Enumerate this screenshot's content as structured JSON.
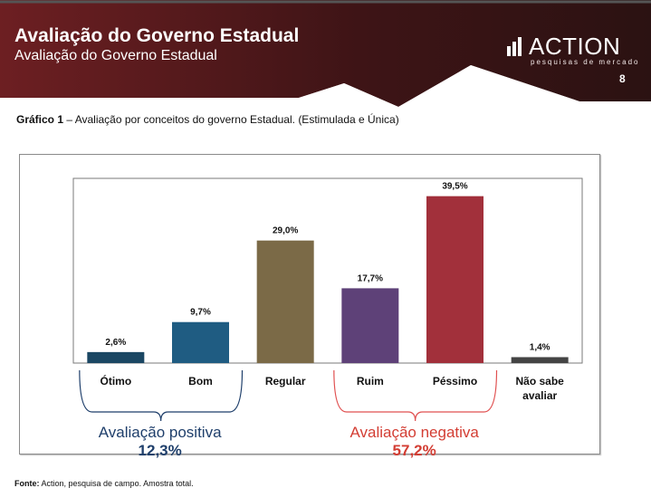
{
  "header": {
    "title": "Avaliação do Governo Estadual",
    "subtitle": "Avaliação do Governo Estadual",
    "logo_text": "ACTION",
    "logo_tagline": "pesquisas de mercado",
    "page_number": "8"
  },
  "caption": {
    "prefix": "Gráfico 1",
    "text": " – Avaliação por conceitos do governo Estadual. (Estimulada e Única)"
  },
  "chart_data": {
    "type": "bar",
    "title": "Avaliação por conceitos do governo Estadual",
    "categories": [
      "Ótimo",
      "Bom",
      "Regular",
      "Ruim",
      "Péssimo",
      "Não sabe avaliar"
    ],
    "category_lines": [
      [
        "Ótimo"
      ],
      [
        "Bom"
      ],
      [
        "Regular"
      ],
      [
        "Ruim"
      ],
      [
        "Péssimo"
      ],
      [
        "Não sabe",
        "avaliar"
      ]
    ],
    "values": [
      2.6,
      9.7,
      29.0,
      17.7,
      39.5,
      1.4
    ],
    "value_labels": [
      "2,6%",
      "9,7%",
      "29,0%",
      "17,7%",
      "39,5%",
      "1,4%"
    ],
    "colors": [
      "#1b4763",
      "#1f5c82",
      "#7b6a47",
      "#5e4178",
      "#a2303b",
      "#444444"
    ],
    "ylim": [
      0,
      42
    ],
    "grid": false,
    "groups": [
      {
        "label": "Avaliação positiva",
        "value": "12,3%",
        "from": 0,
        "to": 1,
        "color": "#1f3f6b",
        "value_color": "#1f3f6b",
        "brace_color": "#1f3f6b"
      },
      {
        "label": "Avaliação negativa",
        "value": "57,2%",
        "from": 3,
        "to": 4,
        "color": "#d33d33",
        "value_color": "#d33d33",
        "brace_color": "#e05050"
      }
    ]
  },
  "footer": {
    "prefix": "Fonte:",
    "text": " Action, pesquisa de campo. Amostra total."
  }
}
